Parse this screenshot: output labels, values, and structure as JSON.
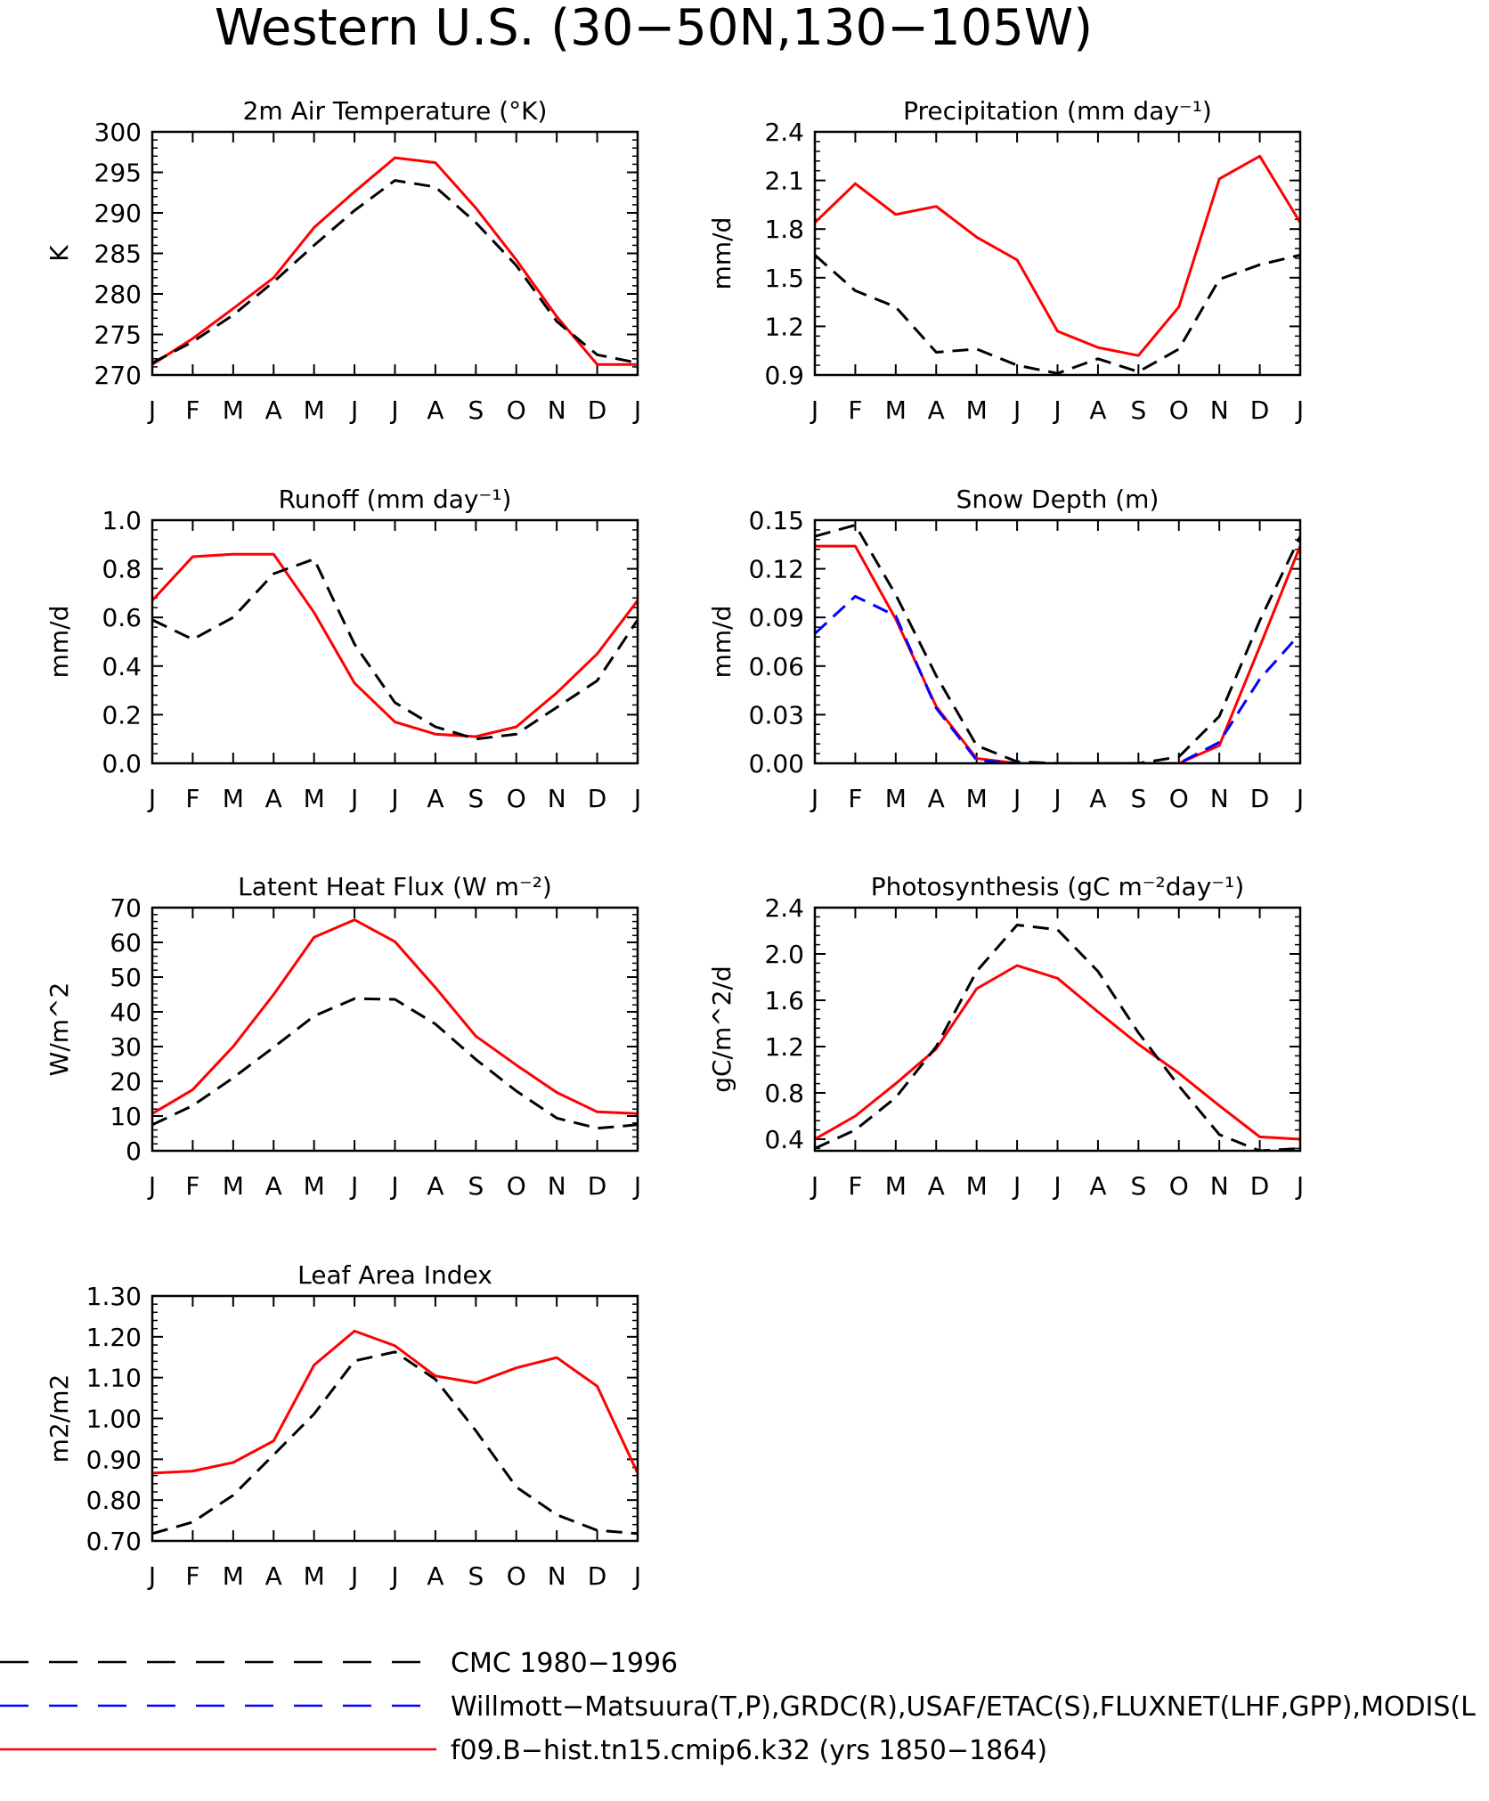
{
  "title": "Western U.S. (30−50N,130−105W)",
  "months": [
    "J",
    "F",
    "M",
    "A",
    "M",
    "J",
    "J",
    "A",
    "S",
    "O",
    "N",
    "D",
    "J"
  ],
  "colors": {
    "obs": "#000000",
    "obs2": "#0000ff",
    "model": "#ff0000"
  },
  "legend": [
    {
      "key": "obs",
      "label": "CMC 1980−1996",
      "style": "dash",
      "color": "#000000"
    },
    {
      "key": "obs2",
      "label": "Willmott−Matsuura(T,P),GRDC(R),USAF/ETAC(S),FLUXNET(LHF,GPP),MODIS(L",
      "style": "dash",
      "color": "#0000ff"
    },
    {
      "key": "model",
      "label": "f09.B−hist.tn15.cmip6.k32 (yrs 1850−1864)",
      "style": "solid",
      "color": "#ff0000"
    }
  ],
  "chart_data": [
    {
      "type": "line",
      "title": "2m Air Temperature (°K)",
      "ylabel": "K",
      "ylim": [
        270,
        300
      ],
      "yticks": [
        "270",
        "275",
        "280",
        "285",
        "290",
        "295",
        "300"
      ],
      "series": [
        {
          "key": "model",
          "values": [
            271.3,
            274.5,
            278.2,
            282.0,
            288.2,
            292.6,
            296.8,
            296.2,
            290.6,
            284.2,
            277.2,
            271.3,
            271.3
          ]
        },
        {
          "key": "obs",
          "values": [
            271.5,
            274.1,
            277.4,
            281.5,
            286.0,
            290.3,
            294.0,
            293.2,
            288.8,
            283.5,
            276.6,
            272.5,
            271.5
          ]
        }
      ]
    },
    {
      "type": "line",
      "title": "Precipitation (mm day⁻¹)",
      "ylabel": "mm/d",
      "ylim": [
        0.9,
        2.4
      ],
      "yticks": [
        "0.9",
        "1.2",
        "1.5",
        "1.8",
        "2.1",
        "2.4"
      ],
      "series": [
        {
          "key": "model",
          "values": [
            1.84,
            2.08,
            1.89,
            1.94,
            1.75,
            1.61,
            1.17,
            1.07,
            1.02,
            1.32,
            2.11,
            2.25,
            1.84
          ]
        },
        {
          "key": "obs",
          "values": [
            1.64,
            1.42,
            1.32,
            1.04,
            1.06,
            0.96,
            0.91,
            1.0,
            0.92,
            1.06,
            1.49,
            1.58,
            1.64
          ]
        }
      ]
    },
    {
      "type": "line",
      "title": "Runoff (mm day⁻¹)",
      "ylabel": "mm/d",
      "ylim": [
        0.0,
        1.0
      ],
      "yticks": [
        "0.0",
        "0.2",
        "0.4",
        "0.6",
        "0.8",
        "1.0"
      ],
      "series": [
        {
          "key": "model",
          "values": [
            0.67,
            0.85,
            0.86,
            0.86,
            0.62,
            0.33,
            0.17,
            0.12,
            0.11,
            0.15,
            0.29,
            0.45,
            0.67
          ]
        },
        {
          "key": "obs",
          "values": [
            0.59,
            0.51,
            0.6,
            0.78,
            0.84,
            0.49,
            0.25,
            0.15,
            0.1,
            0.12,
            0.23,
            0.34,
            0.59
          ]
        }
      ]
    },
    {
      "type": "line",
      "title": "Snow Depth (m)",
      "ylabel": "mm/d",
      "ylim": [
        0.0,
        0.15
      ],
      "yticks": [
        "0.00",
        "0.03",
        "0.06",
        "0.09",
        "0.12",
        "0.15"
      ],
      "series": [
        {
          "key": "model",
          "values": [
            0.134,
            0.134,
            0.089,
            0.035,
            0.003,
            0.0,
            0.0,
            0.0,
            0.0,
            0.0,
            0.011,
            0.072,
            0.134
          ]
        },
        {
          "key": "obs2",
          "values": [
            0.08,
            0.103,
            0.091,
            0.034,
            0.002,
            0.0,
            0.0,
            0.0,
            0.0,
            0.0,
            0.013,
            0.052,
            0.08
          ]
        },
        {
          "key": "obs",
          "values": [
            0.14,
            0.147,
            0.104,
            0.054,
            0.011,
            0.001,
            0.0,
            0.0,
            0.0,
            0.004,
            0.029,
            0.088,
            0.14
          ]
        }
      ]
    },
    {
      "type": "line",
      "title": "Latent Heat Flux (W m⁻²)",
      "ylabel": "W/m^2",
      "ylim": [
        0,
        70
      ],
      "yticks": [
        "0",
        "10",
        "20",
        "30",
        "40",
        "50",
        "60",
        "70"
      ],
      "series": [
        {
          "key": "model",
          "values": [
            10.7,
            17.6,
            30.0,
            45.0,
            61.5,
            66.5,
            60.2,
            47.0,
            33.0,
            24.7,
            16.8,
            11.2,
            10.7
          ]
        },
        {
          "key": "obs",
          "values": [
            7.5,
            13.0,
            21.0,
            29.8,
            38.8,
            43.8,
            43.6,
            36.5,
            26.3,
            17.2,
            9.4,
            6.5,
            7.5
          ]
        }
      ]
    },
    {
      "type": "line",
      "title": "Photosynthesis (gC m⁻²day⁻¹)",
      "ylabel": "gC/m^2/d",
      "ylim": [
        0.3,
        2.4
      ],
      "yticks": [
        "0.4",
        "0.8",
        "1.2",
        "1.6",
        "2.0",
        "2.4"
      ],
      "series": [
        {
          "key": "model",
          "values": [
            0.4,
            0.6,
            0.88,
            1.18,
            1.7,
            1.9,
            1.79,
            1.5,
            1.22,
            0.97,
            0.69,
            0.42,
            0.4
          ]
        },
        {
          "key": "obs",
          "values": [
            0.32,
            0.48,
            0.76,
            1.2,
            1.85,
            2.25,
            2.21,
            1.85,
            1.32,
            0.86,
            0.44,
            0.3,
            0.32
          ]
        }
      ]
    },
    {
      "type": "line",
      "title": "Leaf Area Index",
      "ylabel": "m2/m2",
      "ylim": [
        0.7,
        1.3
      ],
      "yticks": [
        "0.70",
        "0.80",
        "0.90",
        "1.00",
        "1.10",
        "1.20",
        "1.30"
      ],
      "series": [
        {
          "key": "model",
          "values": [
            0.866,
            0.871,
            0.892,
            0.945,
            1.131,
            1.214,
            1.178,
            1.104,
            1.087,
            1.124,
            1.149,
            1.079,
            0.866
          ]
        },
        {
          "key": "obs",
          "values": [
            0.718,
            0.746,
            0.812,
            0.911,
            1.011,
            1.141,
            1.163,
            1.096,
            0.97,
            0.832,
            0.764,
            0.726,
            0.718
          ]
        }
      ]
    }
  ]
}
